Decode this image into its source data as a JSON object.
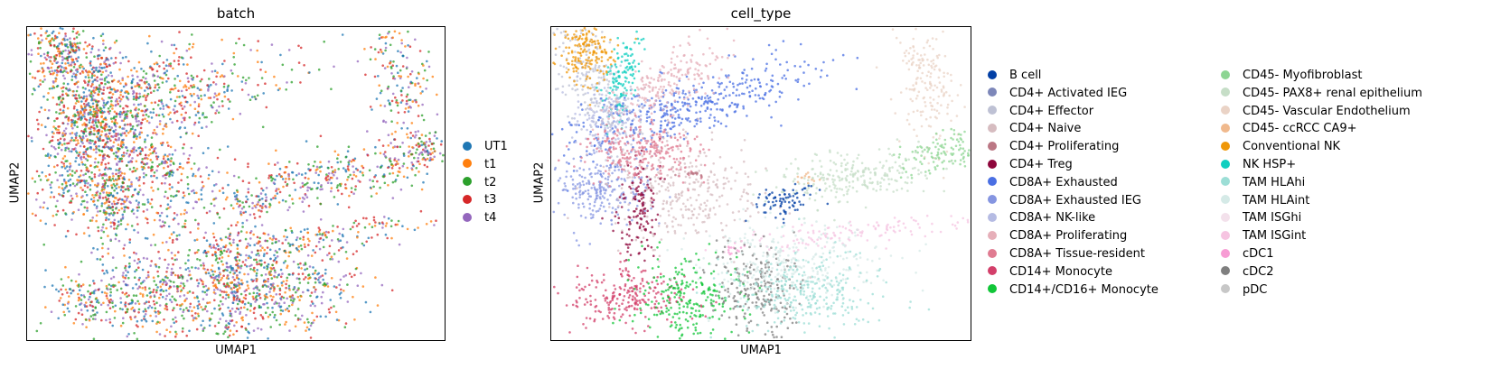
{
  "chart_data": [
    {
      "type": "scatter",
      "title": "batch",
      "xlabel": "UMAP1",
      "ylabel": "UMAP2",
      "grid": false,
      "ticks": false,
      "legend_placement": "right",
      "legend": [
        {
          "name": "UT1",
          "color": "#1f77b4"
        },
        {
          "name": "t1",
          "color": "#ff7f0e"
        },
        {
          "name": "t2",
          "color": "#2ca02c"
        },
        {
          "name": "t3",
          "color": "#d62728"
        },
        {
          "name": "t4",
          "color": "#9467bd"
        }
      ]
    },
    {
      "type": "scatter",
      "title": "cell_type",
      "xlabel": "UMAP1",
      "ylabel": "UMAP2",
      "grid": false,
      "ticks": false,
      "legend_placement": "right",
      "legend": [
        {
          "name": "B cell",
          "color": "#023fa5"
        },
        {
          "name": "CD4+ Activated IEG",
          "color": "#7d87b9"
        },
        {
          "name": "CD4+ Effector",
          "color": "#bec1d4"
        },
        {
          "name": "CD4+ Naive",
          "color": "#d6bcc0"
        },
        {
          "name": "CD4+ Proliferating",
          "color": "#bb7784"
        },
        {
          "name": "CD4+ Treg",
          "color": "#8e063b"
        },
        {
          "name": "CD8A+ Exhausted",
          "color": "#4a6fe3"
        },
        {
          "name": "CD8A+ Exhausted IEG",
          "color": "#8595e1"
        },
        {
          "name": "CD8A+ NK-like",
          "color": "#b5bbe3"
        },
        {
          "name": "CD8A+ Proliferating",
          "color": "#e6afb9"
        },
        {
          "name": "CD8A+ Tissue-resident",
          "color": "#e07b91"
        },
        {
          "name": "CD14+ Monocyte",
          "color": "#d33f6a"
        },
        {
          "name": "CD14+/CD16+ Monocyte",
          "color": "#11c638"
        },
        {
          "name": "CD45- Myofibroblast",
          "color": "#8dd593"
        },
        {
          "name": "CD45- PAX8+ renal epithelium",
          "color": "#c6dec7"
        },
        {
          "name": "CD45- Vascular Endothelium",
          "color": "#ead3c6"
        },
        {
          "name": "CD45- ccRCC CA9+",
          "color": "#f0b98d"
        },
        {
          "name": "Conventional NK",
          "color": "#ef9708"
        },
        {
          "name": "NK HSP+",
          "color": "#0fcfc0"
        },
        {
          "name": "TAM HLAhi",
          "color": "#9cded6"
        },
        {
          "name": "TAM HLAint",
          "color": "#d5eae7"
        },
        {
          "name": "TAM ISGhi",
          "color": "#f3e1eb"
        },
        {
          "name": "TAM ISGint",
          "color": "#f6c4e1"
        },
        {
          "name": "cDC1",
          "color": "#f79cd4"
        },
        {
          "name": "cDC2",
          "color": "#7f7f7f"
        },
        {
          "name": "pDC",
          "color": "#c7c7c7"
        }
      ]
    }
  ]
}
